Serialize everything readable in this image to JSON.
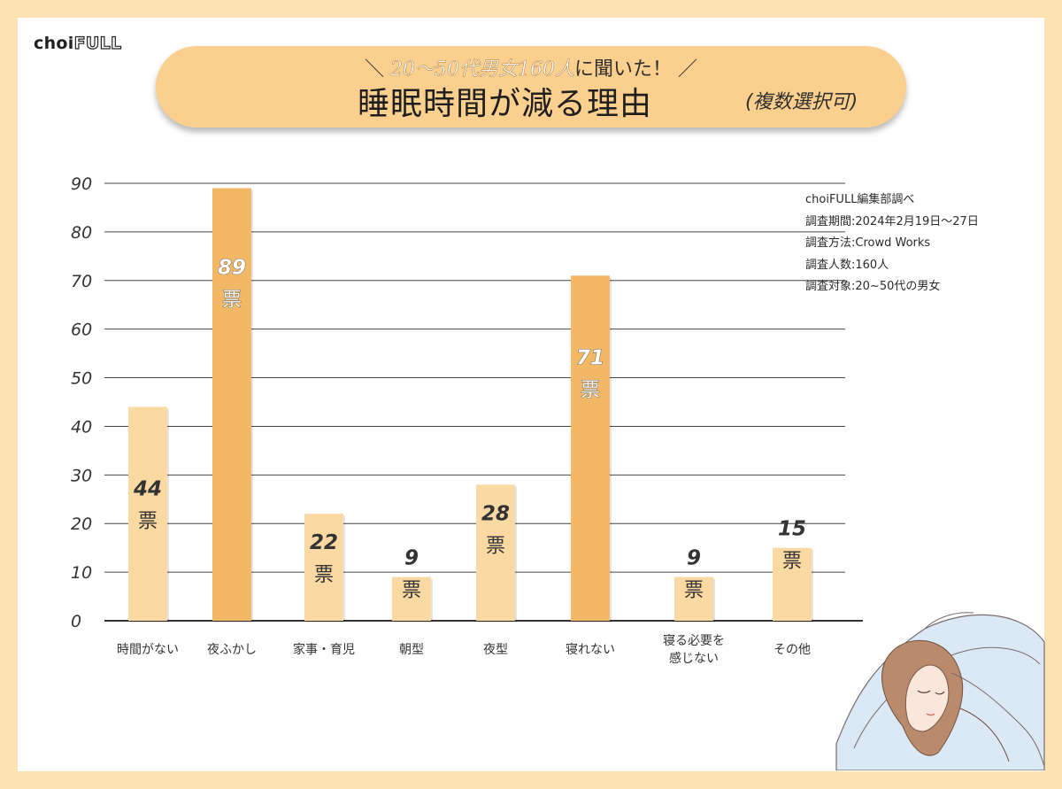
{
  "brand": {
    "logo_main": "choi",
    "logo_accent": "FULL"
  },
  "banner": {
    "subtitle_prefix": "＼",
    "subtitle_em": "20〜50代男女160人",
    "subtitle_rest": "に聞いた！",
    "subtitle_suffix": "／",
    "title": "睡眠時間が減る理由",
    "note": "(複数選択可)"
  },
  "survey_meta": {
    "line1": "choiFULL編集部調べ",
    "line2": "調査期間:2024年2月19日〜27日",
    "line3": "調査方法:Crowd Works",
    "line4": "調査人数:160人",
    "line5": "調査対象:20~50代の男女"
  },
  "colors": {
    "background": "#fce3b4",
    "bar_light": "#fbd9a3",
    "bar_dark": "#f2b865",
    "banner": "#fbcf8d",
    "gridline": "#444444"
  },
  "chart_data": {
    "type": "bar",
    "title": "睡眠時間が減る理由",
    "ylim": [
      0,
      90
    ],
    "yticks": [
      0,
      10,
      20,
      30,
      40,
      50,
      60,
      70,
      80,
      90
    ],
    "grid": true,
    "unit": "票",
    "categories": [
      "時間がない",
      "夜ふかし",
      "家事・育児",
      "朝型",
      "夜型",
      "寝れない",
      "寝る必要を\n感じない",
      "その他"
    ],
    "values": [
      44,
      89,
      22,
      9,
      28,
      71,
      9,
      15
    ],
    "highlight": [
      false,
      true,
      false,
      false,
      false,
      true,
      false,
      false
    ]
  }
}
